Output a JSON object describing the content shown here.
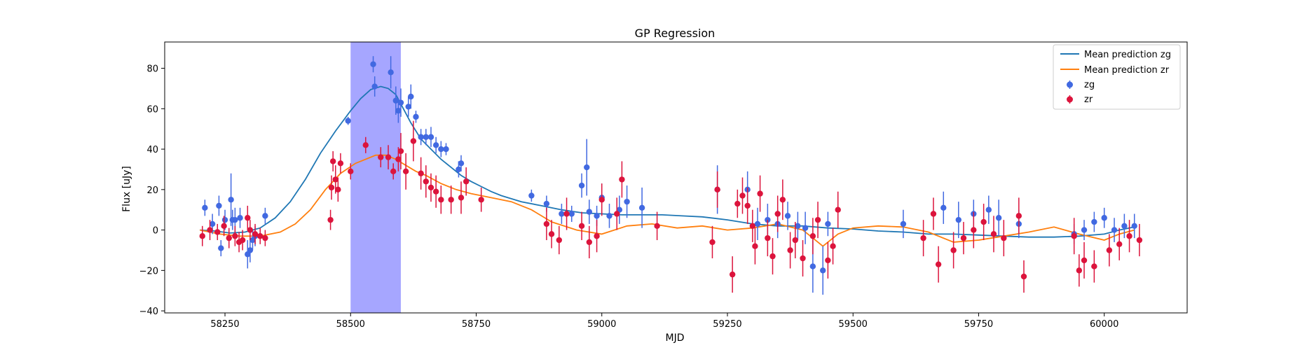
{
  "chart_data": {
    "type": "scatter",
    "title": "GP Regression",
    "xlabel": "MJD",
    "ylabel": "Flux [uJy]",
    "xlim": [
      58130,
      60165
    ],
    "ylim": [
      -41,
      93
    ],
    "x_ticks": [
      58250,
      58500,
      58750,
      59000,
      59250,
      59500,
      59750,
      60000
    ],
    "y_ticks": [
      -40,
      -20,
      0,
      20,
      40,
      60,
      80
    ],
    "x_tick_labels": [
      "58250",
      "58500",
      "58750",
      "59000",
      "59250",
      "59500",
      "59750",
      "60000"
    ],
    "y_tick_labels": [
      "−40",
      "−20",
      "0",
      "20",
      "40",
      "60",
      "80"
    ],
    "legend_position": "top-right",
    "shaded_region": {
      "x0": 58500,
      "x1": 58600,
      "color": "#0000ff",
      "alpha": 0.35
    },
    "lines": [
      {
        "name": "Mean prediction zg",
        "color": "#1f77b4",
        "x": [
          58200,
          58230,
          58260,
          58290,
          58320,
          58350,
          58380,
          58410,
          58440,
          58470,
          58500,
          58520,
          58540,
          58560,
          58575,
          58590,
          58605,
          58620,
          58640,
          58660,
          58680,
          58700,
          58720,
          58740,
          58760,
          58780,
          58800,
          58840,
          58880,
          58920,
          58960,
          59000,
          59040,
          59080,
          59120,
          59160,
          59200,
          59250,
          59300,
          59350,
          59400,
          59450,
          59500,
          59550,
          59600,
          59650,
          59700,
          59750,
          59800,
          59850,
          59900,
          59950,
          60000,
          60030,
          60060
        ],
        "y": [
          0,
          -0.5,
          -1.5,
          -1,
          1,
          6,
          14,
          25,
          38,
          49,
          59,
          65,
          69.5,
          71,
          70,
          67,
          60,
          53,
          45,
          40,
          35,
          31,
          27,
          24,
          21.5,
          19,
          17,
          14,
          12,
          10,
          8.5,
          8,
          7.5,
          7.5,
          7.5,
          7,
          6.5,
          5,
          3,
          2,
          2,
          1,
          0.5,
          -0.5,
          -1,
          -2,
          -2,
          -2.5,
          -3,
          -3.5,
          -3.5,
          -3,
          -2,
          0,
          1.5
        ]
      },
      {
        "name": "Mean prediction zr",
        "color": "#ff7f0e",
        "x": [
          58200,
          58240,
          58280,
          58320,
          58360,
          58390,
          58420,
          58450,
          58480,
          58510,
          58530,
          58550,
          58570,
          58590,
          58610,
          58630,
          58650,
          58680,
          58710,
          58740,
          58780,
          58820,
          58860,
          58900,
          58950,
          59000,
          59050,
          59100,
          59150,
          59200,
          59250,
          59300,
          59350,
          59400,
          59420,
          59440,
          59470,
          59500,
          59550,
          59600,
          59650,
          59700,
          59750,
          59800,
          59850,
          59900,
          59950,
          60000,
          60030,
          60060
        ],
        "y": [
          0,
          -2,
          -3,
          -3,
          -1,
          3,
          10,
          20,
          28,
          33,
          35,
          37,
          37,
          35,
          32,
          29,
          27,
          23,
          20,
          18,
          16,
          14,
          10,
          4,
          0,
          -2,
          2,
          3,
          1,
          2,
          0,
          1,
          3,
          0,
          -4,
          -8,
          -2,
          1,
          2,
          1.5,
          -1,
          -6,
          -5,
          -3,
          -1,
          1.5,
          -2,
          -5,
          -2,
          0
        ]
      }
    ],
    "series": [
      {
        "name": "zg",
        "color": "#4169e1",
        "x": [
          58210,
          58225,
          58238,
          58242,
          58250,
          58262,
          58265,
          58270,
          58280,
          58295,
          58300,
          58305,
          58310,
          58330,
          58495,
          58545,
          58548,
          58580,
          58590,
          58595,
          58600,
          58615,
          58620,
          58630,
          58640,
          58650,
          58660,
          58670,
          58680,
          58690,
          58715,
          58720,
          58860,
          58890,
          58920,
          58940,
          58960,
          58970,
          58975,
          58990,
          59000,
          59015,
          59035,
          59050,
          59080,
          59230,
          59290,
          59310,
          59330,
          59350,
          59370,
          59390,
          59405,
          59420,
          59440,
          59450,
          59600,
          59680,
          59710,
          59740,
          59770,
          59790,
          59830,
          59940,
          59960,
          59980,
          60000,
          60020,
          60040,
          60060
        ],
        "y": [
          11,
          3,
          12,
          -9,
          5,
          15,
          5,
          5,
          6,
          -12,
          -10,
          -5,
          -3,
          7,
          54,
          82,
          71,
          78,
          64,
          59,
          63,
          61,
          66,
          56,
          46,
          46,
          46,
          42,
          40,
          40,
          30,
          33,
          17,
          13,
          8,
          8,
          22,
          31,
          9,
          7,
          16,
          7,
          10,
          14,
          11,
          20,
          20,
          3,
          5,
          3,
          7,
          2,
          1,
          -18,
          -20,
          3,
          3,
          11,
          5,
          8,
          10,
          6,
          3,
          -2,
          0,
          4,
          6,
          0,
          2,
          2
        ],
        "err": [
          4,
          5,
          5,
          4,
          5,
          13,
          5,
          6,
          5,
          7,
          6,
          5,
          5,
          4,
          2,
          4,
          5,
          8,
          7,
          6,
          7,
          5,
          6,
          3,
          4,
          4,
          5,
          4,
          4,
          3,
          4,
          4,
          3,
          4,
          5,
          4,
          6,
          14,
          6,
          5,
          7,
          6,
          7,
          8,
          10,
          12,
          9,
          8,
          8,
          7,
          7,
          7,
          8,
          13,
          12,
          6,
          7,
          8,
          9,
          7,
          7,
          9,
          7,
          5,
          5,
          5,
          5,
          6,
          6,
          6
        ]
      },
      {
        "name": "zr",
        "color": "#dc143c",
        "x": [
          58205,
          58220,
          58235,
          58248,
          58258,
          58270,
          58278,
          58285,
          58295,
          58300,
          58310,
          58320,
          58330,
          58460,
          58462,
          58465,
          58470,
          58475,
          58480,
          58500,
          58530,
          58560,
          58575,
          58585,
          58595,
          58600,
          58610,
          58625,
          58640,
          58650,
          58660,
          58670,
          58680,
          58700,
          58720,
          58730,
          58760,
          58890,
          58900,
          58915,
          58930,
          58960,
          58975,
          58990,
          59000,
          59030,
          59040,
          59110,
          59220,
          59230,
          59260,
          59270,
          59280,
          59290,
          59300,
          59305,
          59315,
          59330,
          59340,
          59350,
          59360,
          59375,
          59385,
          59400,
          59420,
          59430,
          59450,
          59460,
          59470,
          59640,
          59660,
          59670,
          59700,
          59720,
          59740,
          59760,
          59780,
          59800,
          59830,
          59840,
          59940,
          59950,
          59960,
          59980,
          60010,
          60030,
          60050,
          60070
        ],
        "y": [
          -3,
          0,
          -1,
          2,
          -4,
          -3,
          -6,
          -5,
          6,
          0,
          -2,
          -3,
          -4,
          5,
          21,
          34,
          25,
          20,
          33,
          29,
          42,
          36,
          36,
          29,
          35,
          39,
          29,
          44,
          28,
          24,
          21,
          19,
          15,
          15,
          16,
          24,
          15,
          3,
          -2,
          -5,
          8,
          2,
          -6,
          -3,
          15,
          8,
          25,
          2,
          -6,
          20,
          -22,
          13,
          17,
          12,
          2,
          -8,
          18,
          -4,
          -13,
          8,
          15,
          -10,
          -5,
          -14,
          -3,
          5,
          -15,
          -8,
          10,
          -4,
          8,
          -17,
          -10,
          -4,
          0,
          4,
          -2,
          -4,
          7,
          -23,
          -3,
          -20,
          -15,
          -18,
          -10,
          -7,
          -3,
          -5
        ],
        "err": [
          5,
          5,
          4,
          5,
          5,
          5,
          5,
          5,
          6,
          5,
          5,
          4,
          4,
          5,
          6,
          5,
          7,
          6,
          5,
          4,
          4,
          5,
          6,
          4,
          6,
          9,
          9,
          10,
          8,
          8,
          7,
          8,
          7,
          7,
          8,
          7,
          6,
          8,
          7,
          7,
          8,
          7,
          8,
          8,
          8,
          8,
          9,
          7,
          8,
          9,
          9,
          7,
          9,
          9,
          8,
          9,
          9,
          9,
          9,
          9,
          10,
          9,
          9,
          9,
          9,
          9,
          9,
          9,
          9,
          9,
          8,
          9,
          9,
          8,
          9,
          9,
          9,
          9,
          9,
          8,
          9,
          8,
          9,
          8,
          8,
          8,
          8,
          8
        ]
      }
    ]
  }
}
